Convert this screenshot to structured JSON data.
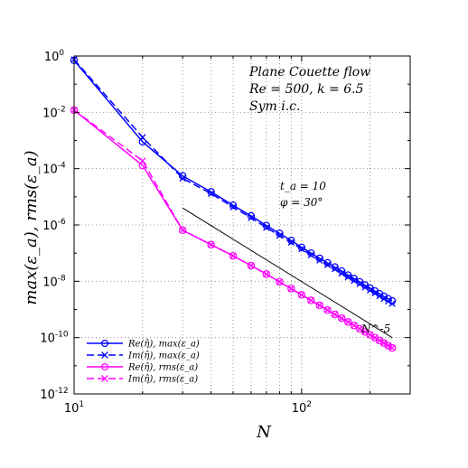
{
  "chart_data": {
    "type": "line",
    "xscale": "log",
    "yscale": "log",
    "xlim": [
      10,
      300
    ],
    "ylim": [
      1e-12,
      1
    ],
    "xlabel": "N",
    "ylabel": "max(ε_a), rms(ε_a)",
    "grid": true,
    "legend_position": "bottom-left",
    "x_ticks": [
      {
        "value": 10,
        "base": "10",
        "exp": "1"
      },
      {
        "value": 100,
        "base": "10",
        "exp": "2"
      }
    ],
    "y_ticks": [
      {
        "value": 1,
        "base": "10",
        "exp": "0"
      },
      {
        "value": 0.01,
        "base": "10",
        "exp": "-2"
      },
      {
        "value": 0.0001,
        "base": "10",
        "exp": "-4"
      },
      {
        "value": 1e-06,
        "base": "10",
        "exp": "-6"
      },
      {
        "value": 1e-08,
        "base": "10",
        "exp": "-8"
      },
      {
        "value": 1e-10,
        "base": "10",
        "exp": "-10"
      },
      {
        "value": 1e-12,
        "base": "10",
        "exp": "-12"
      }
    ],
    "annotations": {
      "flow": "Plane Couette flow",
      "params": "Re = 500,  k = 6.5",
      "ic": "Sym i.c.",
      "time": "t_a = 10",
      "phi": "φ = 30°",
      "slope": "N^-5"
    },
    "reference_line": {
      "label": "N^-5",
      "x": [
        30,
        250
      ],
      "y": [
        4e-06,
        1e-10
      ]
    },
    "series": [
      {
        "name": "Re(η̂),  max(ε_a)",
        "color": "#0000ff",
        "line": "solid",
        "marker": "circle",
        "x": [
          10,
          20,
          30,
          40,
          50,
          60,
          70,
          80,
          90,
          100,
          110,
          120,
          130,
          140,
          150,
          160,
          170,
          180,
          190,
          200,
          210,
          220,
          230,
          240,
          250
        ],
        "y": [
          0.7,
          0.0009,
          5.5e-05,
          1.5e-05,
          5e-06,
          2.1e-06,
          9.5e-07,
          5e-07,
          2.8e-07,
          1.6e-07,
          1e-07,
          6.5e-08,
          4.5e-08,
          3.2e-08,
          2.3e-08,
          1.65e-08,
          1.25e-08,
          9.5e-09,
          7.3e-09,
          5.7e-09,
          4.5e-09,
          3.6e-09,
          2.9e-09,
          2.4e-09,
          2e-09
        ]
      },
      {
        "name": "Im(η̂),  max(ε_a)",
        "color": "#0000ff",
        "line": "dashed",
        "marker": "x",
        "x": [
          10,
          20,
          30,
          40,
          50,
          60,
          70,
          80,
          90,
          100,
          110,
          120,
          130,
          140,
          150,
          160,
          170,
          180,
          190,
          200,
          210,
          220,
          230,
          240,
          250
        ],
        "y": [
          0.75,
          0.0013,
          4.5e-05,
          1.3e-05,
          4.3e-06,
          1.8e-06,
          8e-07,
          4.2e-07,
          2.4e-07,
          1.4e-07,
          8.5e-08,
          5.5e-08,
          3.8e-08,
          2.7e-08,
          1.9e-08,
          1.4e-08,
          1.05e-08,
          8e-09,
          6.1e-09,
          4.8e-09,
          3.8e-09,
          3e-09,
          2.4e-09,
          1.95e-09,
          1.6e-09
        ]
      },
      {
        "name": "Re(η̂),  rms(ε_a)",
        "color": "#ff00ff",
        "line": "solid",
        "marker": "circle",
        "x": [
          10,
          20,
          30,
          40,
          50,
          60,
          70,
          80,
          90,
          100,
          110,
          120,
          130,
          140,
          150,
          160,
          170,
          180,
          190,
          200,
          210,
          220,
          230,
          240,
          250
        ],
        "y": [
          0.012,
          0.00013,
          6.5e-07,
          2e-07,
          8e-08,
          3.6e-08,
          1.8e-08,
          9.5e-09,
          5.5e-09,
          3.3e-09,
          2.1e-09,
          1.4e-09,
          9.5e-10,
          6.7e-10,
          4.9e-10,
          3.6e-10,
          2.7e-10,
          2.05e-10,
          1.6e-10,
          1.25e-10,
          9.9e-11,
          7.9e-11,
          6.4e-11,
          5.2e-11,
          4.3e-11
        ]
      },
      {
        "name": "Im(η̂),  rms(ε_a)",
        "color": "#ff00ff",
        "line": "dashed",
        "marker": "x",
        "x": [
          10,
          20,
          30,
          40,
          50,
          60,
          70,
          80,
          90,
          100,
          110,
          120,
          130,
          140,
          150,
          160,
          170,
          180,
          190,
          200,
          210,
          220,
          230,
          240,
          250
        ],
        "y": [
          0.012,
          0.00019,
          6.5e-07,
          2e-07,
          8e-08,
          3.6e-08,
          1.8e-08,
          9.5e-09,
          5.5e-09,
          3.3e-09,
          2.1e-09,
          1.4e-09,
          9.5e-10,
          6.7e-10,
          4.9e-10,
          3.6e-10,
          2.7e-10,
          2.05e-10,
          1.6e-10,
          1.25e-10,
          9.9e-11,
          7.9e-11,
          6.4e-11,
          5.2e-11,
          4.3e-11
        ]
      }
    ]
  }
}
